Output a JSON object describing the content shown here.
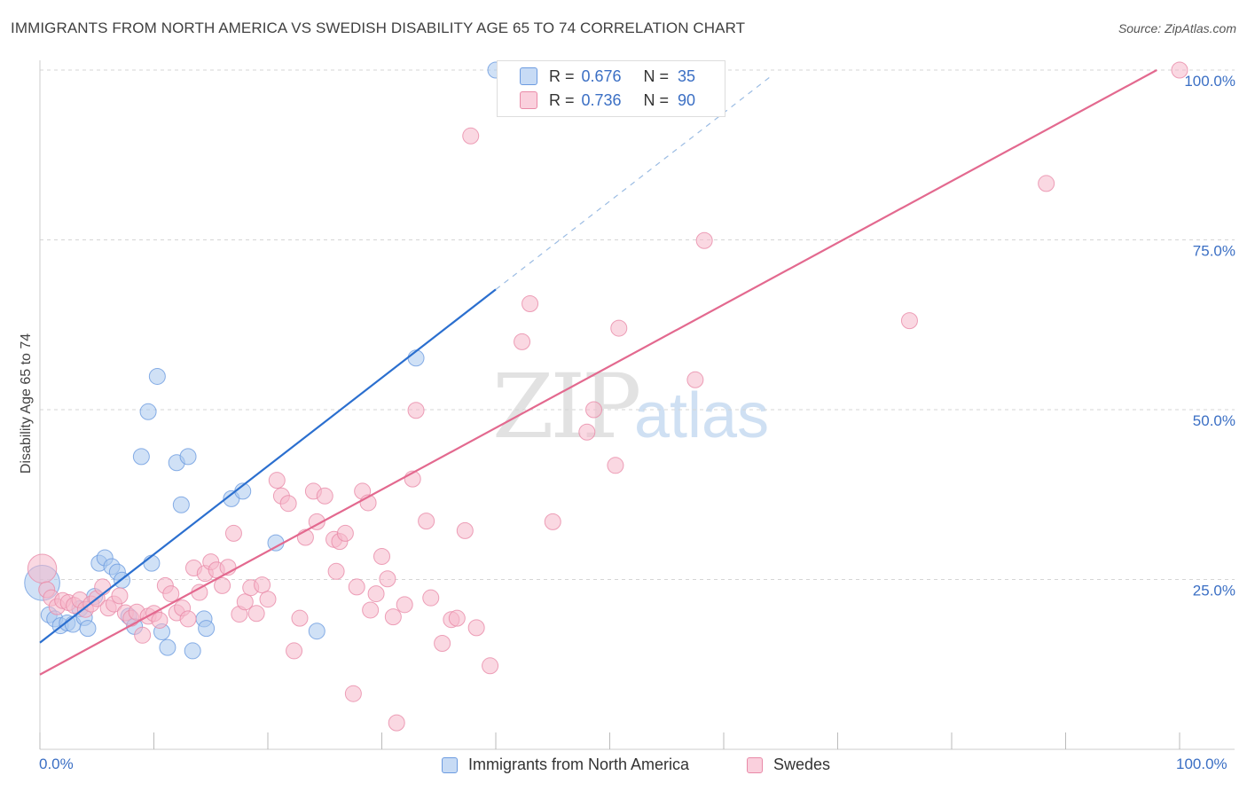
{
  "title": "IMMIGRANTS FROM NORTH AMERICA VS SWEDISH DISABILITY AGE 65 TO 74 CORRELATION CHART",
  "source": "Source: ZipAtlas.com",
  "watermark": {
    "zip": "ZIP",
    "atlas": "atlas"
  },
  "legend_box": {
    "r_label": "R =",
    "n_label": "N =",
    "rows": [
      {
        "r": "0.676",
        "n": "35",
        "color": "#a9c8ef"
      },
      {
        "r": "0.736",
        "n": "90",
        "color": "#f6b8cb"
      }
    ]
  },
  "chart_data": {
    "type": "scatter",
    "title": "IMMIGRANTS FROM NORTH AMERICA VS SWEDISH DISABILITY AGE 65 TO 74 CORRELATION CHART",
    "xlabel": "",
    "ylabel": "Disability Age 65 to 74",
    "xlim": [
      0,
      100
    ],
    "ylim": [
      0,
      100
    ],
    "x_tick_labels": [
      "0.0%",
      "100.0%"
    ],
    "y_tick_labels": [
      "25.0%",
      "50.0%",
      "75.0%",
      "100.0%"
    ],
    "y_ticks": [
      25,
      50,
      75,
      100
    ],
    "grid": "horizontal dashed",
    "legend": "bottom",
    "series": [
      {
        "name": "Immigrants from North America",
        "color": "#6c9be0",
        "fill": "#a9c8ef",
        "line_color": "#2b6fcf",
        "trend": {
          "x0": 0,
          "y0": 15.7,
          "x1": 40,
          "y1": 67.7,
          "dashed_to_x": 64,
          "dashed_to_y": 98.9
        },
        "points": [
          [
            0.2,
            24.5,
            2.2
          ],
          [
            0.8,
            19.8,
            1
          ],
          [
            1.3,
            19.2,
            1
          ],
          [
            1.8,
            18.2,
            1
          ],
          [
            2.4,
            18.6,
            1
          ],
          [
            2.9,
            18.4,
            1
          ],
          [
            3.5,
            20.7,
            1
          ],
          [
            3.9,
            19.4,
            1
          ],
          [
            4.2,
            17.8,
            1
          ],
          [
            4.8,
            22.5,
            1
          ],
          [
            5.2,
            27.4,
            1
          ],
          [
            5.7,
            28.2,
            1
          ],
          [
            6.3,
            26.9,
            1
          ],
          [
            6.8,
            26.1,
            1
          ],
          [
            7.2,
            24.9,
            1
          ],
          [
            7.8,
            19.6,
            1
          ],
          [
            8.3,
            18.1,
            1
          ],
          [
            8.9,
            43.1,
            1
          ],
          [
            9.5,
            49.7,
            1
          ],
          [
            9.8,
            27.4,
            1
          ],
          [
            10.3,
            54.9,
            1
          ],
          [
            10.7,
            17.3,
            1
          ],
          [
            11.2,
            15.0,
            1
          ],
          [
            12.0,
            42.2,
            1
          ],
          [
            12.4,
            36.0,
            1
          ],
          [
            13.0,
            43.1,
            1
          ],
          [
            13.4,
            14.5,
            1
          ],
          [
            14.4,
            19.2,
            1
          ],
          [
            14.6,
            17.8,
            1
          ],
          [
            16.8,
            36.9,
            1
          ],
          [
            17.8,
            38.0,
            1
          ],
          [
            20.7,
            30.4,
            1
          ],
          [
            24.3,
            17.4,
            1
          ],
          [
            33.0,
            57.6,
            1
          ],
          [
            40.0,
            100.0,
            1
          ]
        ]
      },
      {
        "name": "Swedes",
        "color": "#e98aa8",
        "fill": "#f6b8cb",
        "line_color": "#e3698f",
        "trend": {
          "x0": 0,
          "y0": 11.0,
          "x1": 98,
          "y1": 100.0
        },
        "points": [
          [
            0.2,
            26.6,
            1.8
          ],
          [
            0.6,
            23.5,
            1
          ],
          [
            1.0,
            22.3,
            1
          ],
          [
            1.5,
            21.0,
            1
          ],
          [
            2.0,
            21.9,
            1
          ],
          [
            2.5,
            21.6,
            1
          ],
          [
            3.0,
            21.2,
            1
          ],
          [
            3.5,
            22.0,
            1
          ],
          [
            4.0,
            20.6,
            1
          ],
          [
            4.5,
            21.4,
            1
          ],
          [
            5.0,
            22.2,
            1
          ],
          [
            5.5,
            23.9,
            1
          ],
          [
            6.0,
            20.8,
            1
          ],
          [
            6.5,
            21.4,
            1
          ],
          [
            7.0,
            22.6,
            1
          ],
          [
            7.5,
            20.1,
            1
          ],
          [
            8.0,
            19.3,
            1
          ],
          [
            8.5,
            20.2,
            1
          ],
          [
            9.0,
            16.8,
            1
          ],
          [
            9.5,
            19.6,
            1
          ],
          [
            10.0,
            20.0,
            1
          ],
          [
            10.5,
            19.0,
            1
          ],
          [
            11.0,
            24.1,
            1
          ],
          [
            11.5,
            22.9,
            1
          ],
          [
            12.0,
            20.1,
            1
          ],
          [
            12.5,
            20.8,
            1
          ],
          [
            13.0,
            19.2,
            1
          ],
          [
            13.5,
            26.7,
            1
          ],
          [
            14.0,
            23.1,
            1
          ],
          [
            14.5,
            25.9,
            1
          ],
          [
            15.0,
            27.6,
            1
          ],
          [
            15.5,
            26.4,
            1
          ],
          [
            16.0,
            24.1,
            1
          ],
          [
            16.5,
            26.8,
            1
          ],
          [
            17.0,
            31.8,
            1
          ],
          [
            17.5,
            19.9,
            1
          ],
          [
            18.0,
            21.7,
            1
          ],
          [
            18.5,
            23.8,
            1
          ],
          [
            19.0,
            20.0,
            1
          ],
          [
            19.5,
            24.2,
            1
          ],
          [
            20.0,
            22.1,
            1
          ],
          [
            20.8,
            39.6,
            1
          ],
          [
            21.2,
            37.3,
            1
          ],
          [
            21.8,
            36.2,
            1
          ],
          [
            22.3,
            14.5,
            1
          ],
          [
            22.8,
            19.3,
            1
          ],
          [
            23.3,
            31.2,
            1
          ],
          [
            24.0,
            38.0,
            1
          ],
          [
            24.3,
            33.5,
            1
          ],
          [
            25.0,
            37.3,
            1
          ],
          [
            25.8,
            30.9,
            1
          ],
          [
            26.3,
            30.6,
            1
          ],
          [
            26.8,
            31.8,
            1
          ],
          [
            27.5,
            8.2,
            1
          ],
          [
            27.8,
            23.9,
            1
          ],
          [
            28.3,
            38.0,
            1
          ],
          [
            28.8,
            36.3,
            1
          ],
          [
            29.5,
            22.9,
            1
          ],
          [
            30.0,
            28.4,
            1
          ],
          [
            30.5,
            25.1,
            1
          ],
          [
            31.0,
            19.5,
            1
          ],
          [
            31.3,
            3.9,
            1
          ],
          [
            32.0,
            21.3,
            1
          ],
          [
            32.7,
            39.8,
            1
          ],
          [
            33.0,
            49.9,
            1
          ],
          [
            33.9,
            33.6,
            1
          ],
          [
            35.3,
            15.6,
            1
          ],
          [
            36.1,
            19.1,
            1
          ],
          [
            36.6,
            19.3,
            1
          ],
          [
            37.3,
            32.2,
            1
          ],
          [
            37.8,
            90.3,
            1
          ],
          [
            38.3,
            17.9,
            1
          ],
          [
            39.5,
            12.3,
            1
          ],
          [
            42.3,
            60.0,
            1
          ],
          [
            43.0,
            65.6,
            1
          ],
          [
            45.0,
            33.5,
            1
          ],
          [
            48.0,
            46.7,
            1
          ],
          [
            48.6,
            50.0,
            1
          ],
          [
            50.5,
            41.8,
            1
          ],
          [
            50.8,
            62.0,
            1
          ],
          [
            53.0,
            98.9,
            1
          ],
          [
            57.5,
            54.4,
            1
          ],
          [
            58.3,
            74.9,
            1
          ],
          [
            76.3,
            63.1,
            1
          ],
          [
            88.3,
            83.3,
            1
          ],
          [
            100.0,
            100.0,
            1
          ],
          [
            54.0,
            100.0,
            1
          ],
          [
            26.0,
            26.2,
            1
          ],
          [
            29.0,
            20.5,
            1
          ],
          [
            34.3,
            22.3,
            1
          ]
        ]
      }
    ]
  },
  "legend_bottom": [
    {
      "label": "Immigrants from North America",
      "color": "#a9c8ef",
      "border": "#6c9be0"
    },
    {
      "label": "Swedes",
      "color": "#f6c6d5",
      "border": "#e98aa8"
    }
  ]
}
